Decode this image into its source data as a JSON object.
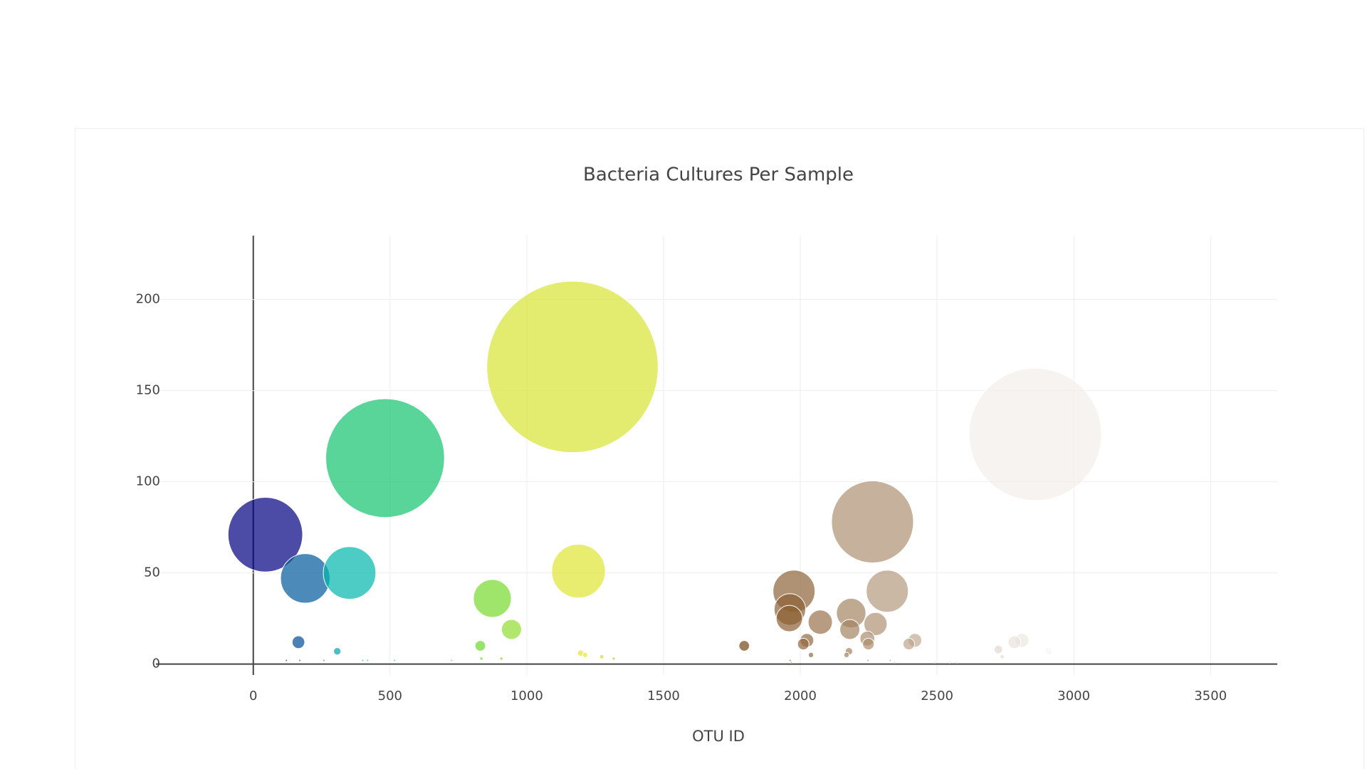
{
  "chart_data": {
    "type": "bubble",
    "title": "Bacteria Cultures Per Sample",
    "x_label": "OTU ID",
    "xlim": [
      -356,
      3744
    ],
    "ylim": [
      -6,
      235
    ],
    "xticks": [
      0,
      500,
      1000,
      1500,
      2000,
      2500,
      3000,
      3500
    ],
    "yticks": [
      0,
      50,
      100,
      150,
      200
    ],
    "grid": true,
    "opacity": 0.7,
    "colorscale": [
      [
        0,
        "rgb(0,0,130)"
      ],
      [
        0.1,
        "rgb(0,180,180)"
      ],
      [
        0.2,
        "rgb(40,210,40)"
      ],
      [
        0.4,
        "rgb(230,230,50)"
      ],
      [
        0.6,
        "rgb(120,70,20)"
      ],
      [
        1,
        "rgb(255,255,255)"
      ]
    ],
    "x": [
      44,
      190,
      352,
      165,
      307,
      482,
      1167,
      1189,
      874,
      944,
      830,
      1795,
      1977,
      1962,
      1960,
      2264,
      2318,
      2186,
      2275,
      2073,
      2181,
      2245,
      2024,
      2011,
      2249,
      2419,
      2397,
      2178,
      2039,
      2169,
      2859,
      2811,
      2783,
      2964,
      2724,
      2907,
      2738,
      1197,
      1213,
      1274,
      1318,
      907,
      834,
      121,
      170,
      258,
      400,
      418,
      516,
      725,
      1963,
      1967,
      2247,
      2329,
      2345,
      2491,
      2546,
      2571,
      2934
    ],
    "y": [
      71,
      47,
      50,
      12,
      7,
      113,
      163,
      51,
      36,
      19,
      10,
      10,
      40,
      30,
      25,
      78,
      40,
      28,
      22,
      23,
      19,
      14,
      13,
      11,
      11,
      13,
      11,
      7,
      5,
      5,
      126,
      13,
      12,
      10,
      8,
      7,
      4,
      6,
      5,
      4,
      3,
      3,
      3,
      2,
      2,
      2,
      2,
      2,
      2,
      2,
      2,
      1,
      2,
      2,
      1,
      1,
      1,
      1,
      2
    ]
  }
}
